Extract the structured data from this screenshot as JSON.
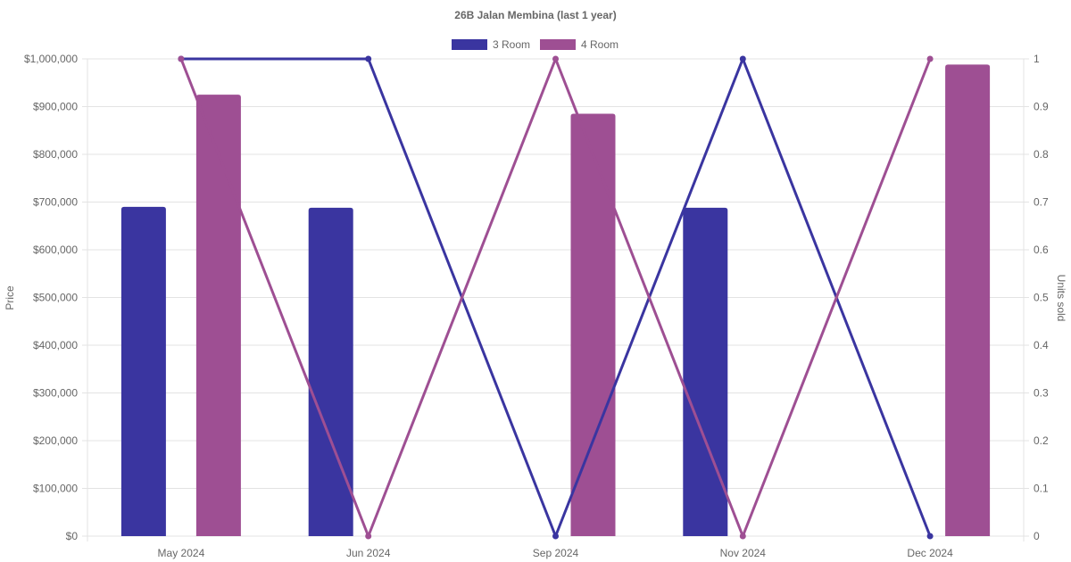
{
  "chart_data": {
    "type": "bar",
    "title": "26B Jalan Membina (last 1 year)",
    "categories": [
      "May 2024",
      "Jun 2024",
      "Sep 2024",
      "Nov 2024",
      "Dec 2024"
    ],
    "y_left": {
      "label": "Price",
      "range": [
        0,
        1000000
      ],
      "ticks": [
        "$0",
        "$100,000",
        "$200,000",
        "$300,000",
        "$400,000",
        "$500,000",
        "$600,000",
        "$700,000",
        "$800,000",
        "$900,000",
        "$1,000,000"
      ]
    },
    "y_right": {
      "label": "Units sold",
      "range": [
        0,
        1
      ],
      "ticks": [
        "0",
        "0.1",
        "0.2",
        "0.3",
        "0.4",
        "0.5",
        "0.6",
        "0.7",
        "0.8",
        "0.9",
        "1"
      ]
    },
    "grid": true,
    "legend_position": "top",
    "series": [
      {
        "name": "3 Room",
        "color": "#3a35a0",
        "price": [
          690000,
          688000,
          null,
          688000,
          null
        ],
        "units_sold": [
          1,
          1,
          0,
          1,
          0
        ]
      },
      {
        "name": "4 Room",
        "color": "#9e4f93",
        "price": [
          925000,
          null,
          885000,
          null,
          988000
        ],
        "units_sold": [
          1,
          0,
          1,
          0,
          1
        ]
      }
    ]
  }
}
